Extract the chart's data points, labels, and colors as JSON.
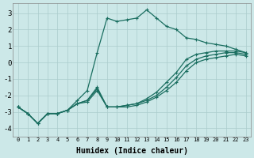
{
  "xlabel": "Humidex (Indice chaleur)",
  "background_color": "#cce8e8",
  "grid_color": "#aacccc",
  "line_color": "#1a6e60",
  "xlim": [
    -0.5,
    23.5
  ],
  "ylim": [
    -4.5,
    3.6
  ],
  "yticks": [
    -4,
    -3,
    -2,
    -1,
    0,
    1,
    2,
    3
  ],
  "xticks": [
    0,
    1,
    2,
    3,
    4,
    5,
    6,
    7,
    8,
    9,
    10,
    11,
    12,
    13,
    14,
    15,
    16,
    17,
    18,
    19,
    20,
    21,
    22,
    23
  ],
  "series": {
    "x": [
      0,
      1,
      2,
      3,
      4,
      5,
      6,
      7,
      8,
      9,
      10,
      11,
      12,
      13,
      14,
      15,
      16,
      17,
      18,
      19,
      20,
      21,
      22,
      23
    ],
    "lines": [
      [
        -2.7,
        -3.1,
        -3.7,
        -3.1,
        -3.1,
        -2.9,
        -2.3,
        -1.7,
        0.6,
        2.7,
        2.5,
        2.6,
        2.7,
        3.2,
        2.7,
        2.2,
        2.0,
        1.5,
        1.4,
        1.2,
        1.1,
        1.0,
        0.8,
        0.6
      ],
      [
        -2.7,
        -3.1,
        -3.7,
        -3.1,
        -3.1,
        -2.9,
        -2.5,
        -2.3,
        -1.5,
        -2.7,
        -2.7,
        -2.6,
        -2.5,
        -2.2,
        -1.8,
        -1.2,
        -0.6,
        0.2,
        0.5,
        0.6,
        0.7,
        0.7,
        0.7,
        0.6
      ],
      [
        -2.7,
        -3.1,
        -3.7,
        -3.1,
        -3.1,
        -2.9,
        -2.5,
        -2.3,
        -1.6,
        -2.7,
        -2.7,
        -2.6,
        -2.5,
        -2.3,
        -2.0,
        -1.5,
        -0.9,
        -0.2,
        0.2,
        0.4,
        0.5,
        0.6,
        0.6,
        0.5
      ],
      [
        -2.7,
        -3.1,
        -3.7,
        -3.1,
        -3.1,
        -2.9,
        -2.5,
        -2.4,
        -1.7,
        -2.7,
        -2.7,
        -2.7,
        -2.6,
        -2.4,
        -2.1,
        -1.7,
        -1.2,
        -0.5,
        0.0,
        0.2,
        0.3,
        0.4,
        0.5,
        0.4
      ]
    ]
  }
}
